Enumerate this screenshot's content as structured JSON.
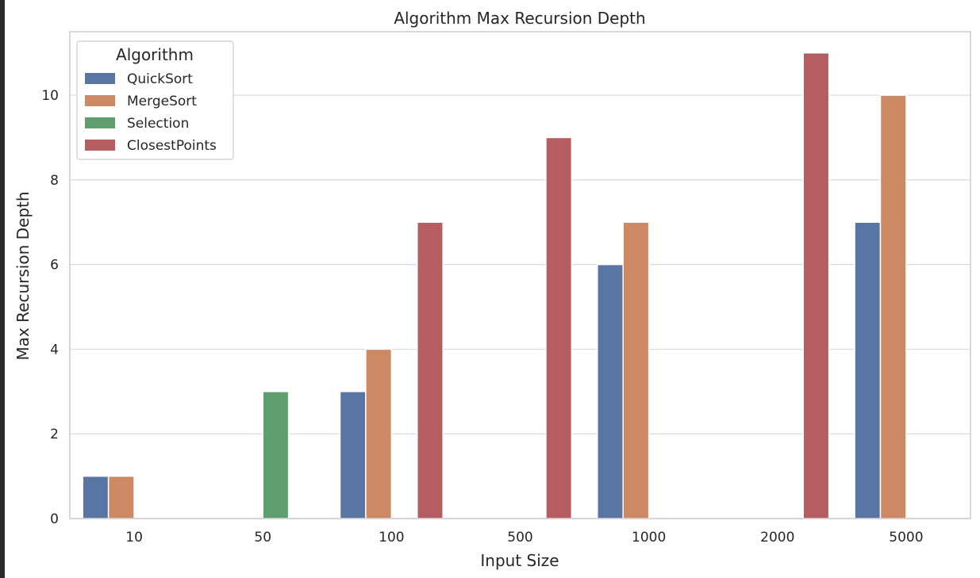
{
  "chart_data": {
    "type": "bar",
    "title": "Algorithm Max Recursion Depth",
    "xlabel": "Input Size",
    "ylabel": "Max Recursion Depth",
    "categories": [
      "10",
      "50",
      "100",
      "500",
      "1000",
      "2000",
      "5000"
    ],
    "ylim": [
      0,
      11.5
    ],
    "yticks": [
      0,
      2,
      4,
      6,
      8,
      10
    ],
    "grid": "horizontal",
    "legend": {
      "title": "Algorithm",
      "placement": "top-left"
    },
    "series": [
      {
        "name": "QuickSort",
        "color": "#5975a4",
        "values": [
          1,
          0,
          3,
          0,
          6,
          0,
          7
        ]
      },
      {
        "name": "MergeSort",
        "color": "#cc8963",
        "values": [
          1,
          0,
          4,
          0,
          7,
          0,
          10
        ]
      },
      {
        "name": "Selection",
        "color": "#5f9e6e",
        "values": [
          0,
          3,
          0,
          0,
          0,
          0,
          0
        ]
      },
      {
        "name": "ClosestPoints",
        "color": "#b55d60",
        "values": [
          0,
          0,
          7,
          9,
          0,
          11,
          0
        ]
      }
    ]
  }
}
